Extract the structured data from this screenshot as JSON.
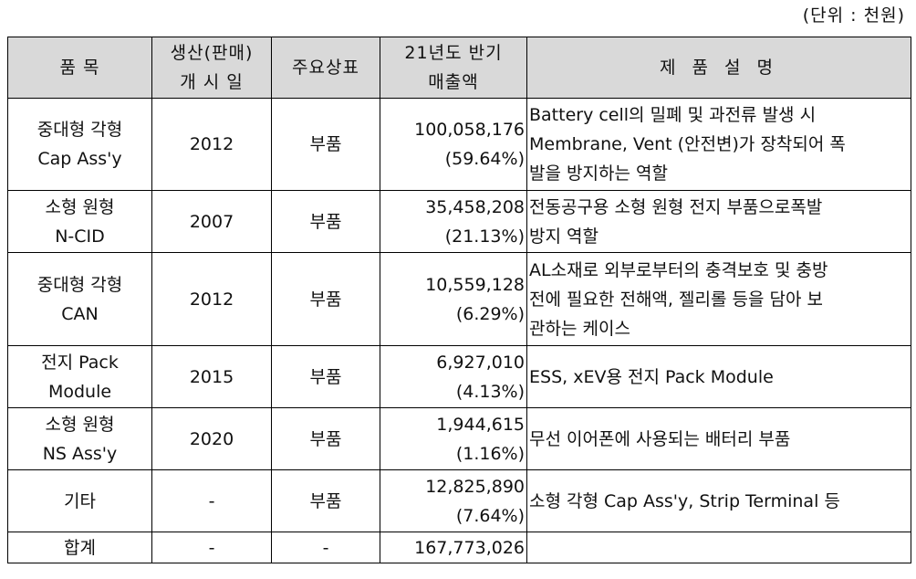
{
  "unit_label": "(단위 : 천원)",
  "headers": {
    "product": "품 목",
    "launch_date_line1": "생산(판매)",
    "launch_date_line2": "개 시 일",
    "brand": "주요상표",
    "sales_line1": "21년도 반기",
    "sales_line2": "매출액",
    "description": "제 품 설 명"
  },
  "rows": [
    {
      "product_line1": "중대형 각형",
      "product_line2": "Cap Ass'y",
      "year": "2012",
      "brand": "부품",
      "sales": "100,058,176",
      "ratio": "(59.64%)",
      "desc_lines": [
        "Battery cell의 밀폐 및 과전류 발생 시",
        "Membrane, Vent (안전변)가 장착되어 폭",
        "발을 방지하는 역할"
      ]
    },
    {
      "product_line1": "소형 원형",
      "product_line2": "N-CID",
      "year": "2007",
      "brand": "부품",
      "sales": "35,458,208",
      "ratio": "(21.13%)",
      "desc_lines": [
        "전동공구용 소형 원형 전지 부품으로폭발",
        "방지 역할"
      ]
    },
    {
      "product_line1": "중대형 각형",
      "product_line2": "CAN",
      "year": "2012",
      "brand": "부품",
      "sales": "10,559,128",
      "ratio": "(6.29%)",
      "desc_lines": [
        "AL소재로 외부로부터의 충격보호 및 충방",
        "전에 필요한 전해액, 젤리롤 등을 담아 보",
        "관하는 케이스"
      ]
    },
    {
      "product_line1": "전지 Pack",
      "product_line2": "Module",
      "year": "2015",
      "brand": "부품",
      "sales": "6,927,010",
      "ratio": "(4.13%)",
      "desc_lines": [
        "ESS, xEV용 전지 Pack Module"
      ]
    },
    {
      "product_line1": "소형 원형",
      "product_line2": "NS Ass'y",
      "year": "2020",
      "brand": "부품",
      "sales": "1,944,615",
      "ratio": "(1.16%)",
      "desc_lines": [
        "무선 이어폰에 사용되는 배터리 부품"
      ]
    },
    {
      "product_line1": "기타",
      "year": "-",
      "brand": "부품",
      "sales": "12,825,890",
      "ratio": "(7.64%)",
      "desc_lines": [
        "소형 각형 Cap Ass'y, Strip Terminal 등"
      ]
    }
  ],
  "total": {
    "label": "합계",
    "year": "-",
    "brand": "-",
    "sales": "167,773,026",
    "description": ""
  }
}
